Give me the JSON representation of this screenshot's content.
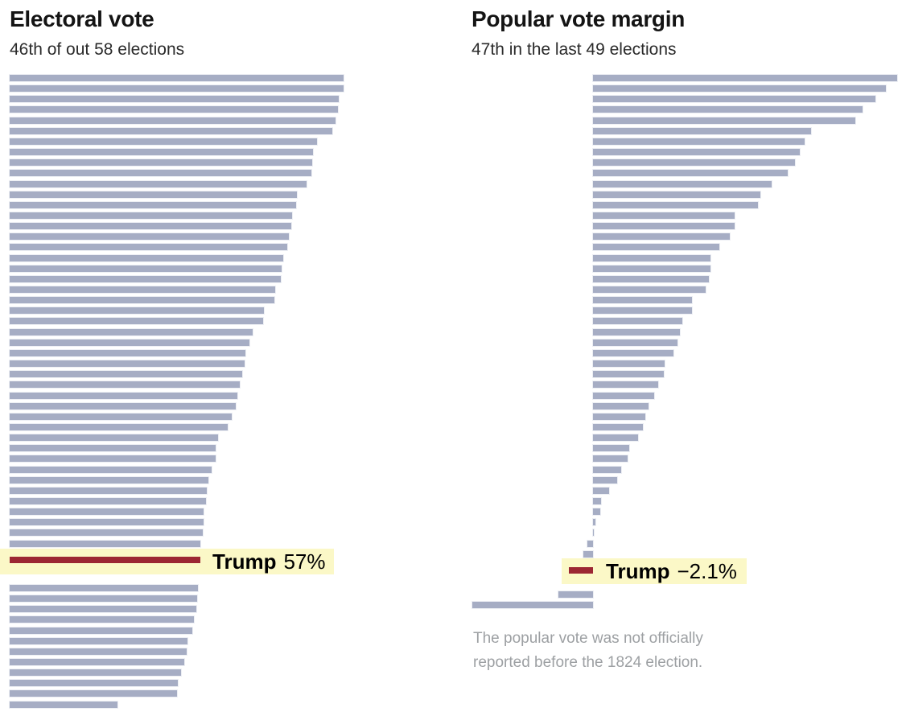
{
  "colors": {
    "bar": "#a6adc4",
    "highlight_bar": "#9c2733",
    "highlight_band": "#fbf8c7",
    "title_text": "#141414",
    "subtitle_text": "#2b2b2b",
    "note_text": "#9da0a3"
  },
  "chart_data": [
    {
      "id": "electoral-vote",
      "type": "bar",
      "orientation": "horizontal-bars-left-aligned",
      "title": "Electoral vote",
      "subtitle": "46th of out 58 elections",
      "unit": "percent of electoral votes won by each election winner, sorted descending",
      "xlim": [
        0,
        100
      ],
      "grid": false,
      "values": [
        100,
        100,
        98.5,
        98.3,
        97.6,
        96.7,
        92.0,
        90.9,
        90.6,
        90.3,
        88.9,
        86.1,
        85.8,
        84.6,
        84.3,
        83.6,
        83.2,
        81.9,
        81.4,
        81.3,
        79.6,
        79.2,
        76.1,
        76.0,
        72.8,
        71.9,
        70.6,
        70.4,
        69.7,
        68.8,
        68.2,
        67.8,
        66.5,
        65.3,
        62.4,
        61.8,
        61.7,
        60.6,
        59.4,
        59.0,
        58.8,
        58.1,
        58.0,
        57.8,
        57.1,
        57.0,
        56.4,
        56.2,
        55.9,
        55.2,
        54.6,
        53.2,
        52.9,
        52.2,
        51.4,
        50.4,
        50.1,
        32.2
      ],
      "highlight": {
        "index": 45,
        "name": "Trump",
        "value_label": "57%"
      }
    },
    {
      "id": "popular-vote-margin",
      "type": "bar",
      "orientation": "horizontal-bars-diverging",
      "title": "Popular vote margin",
      "subtitle": "47th in the last 49 elections",
      "unit": "winner's popular vote margin in percentage points, sorted descending",
      "xlim": [
        -10.4,
        26.2
      ],
      "grid": false,
      "values": [
        26.2,
        25.2,
        24.3,
        23.2,
        22.6,
        18.8,
        18.2,
        17.8,
        17.4,
        16.8,
        15.4,
        14.4,
        14.2,
        12.2,
        12.2,
        11.8,
        10.9,
        10.1,
        10.1,
        10.0,
        9.7,
        8.5,
        8.5,
        7.7,
        7.5,
        7.3,
        6.9,
        6.2,
        6.1,
        5.6,
        5.3,
        4.8,
        4.5,
        4.3,
        3.9,
        3.1,
        3.0,
        2.4,
        2.1,
        1.4,
        0.7,
        0.6,
        0.2,
        0.1,
        -0.5,
        -0.8,
        -2.1,
        -3.0,
        -10.4
      ],
      "highlight": {
        "index": 46,
        "name": "Trump",
        "value_label": "−2.1%"
      },
      "note": "The popular vote was not officially reported before the 1824 election."
    }
  ]
}
